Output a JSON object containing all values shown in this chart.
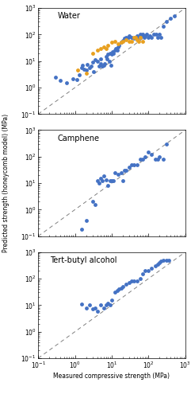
{
  "title_water": "Water",
  "title_camphene": "Camphene",
  "title_tba": "Tert-butyl alcohol",
  "xlabel": "Measured compressive strength (MPa)",
  "ylabel": "Predicted strength (honeycomb model) (MPa)",
  "xlim": [
    0.1,
    1000
  ],
  "ylim": [
    0.1,
    1000
  ],
  "blue_color": "#4472C4",
  "orange_color": "#E8A020",
  "water_blue_x": [
    0.3,
    0.4,
    0.6,
    0.9,
    1.1,
    1.3,
    1.5,
    1.6,
    1.8,
    2.0,
    2.2,
    2.5,
    2.8,
    3.0,
    3.2,
    3.5,
    4.0,
    4.5,
    5.0,
    5.0,
    5.5,
    6.0,
    6.5,
    7.0,
    7.5,
    8.0,
    8.5,
    9.0,
    9.5,
    10.0,
    10.5,
    11.0,
    12.0,
    13.0,
    14.0,
    15.0,
    16.0,
    18.0,
    20.0,
    22.0,
    25.0,
    28.0,
    30.0,
    35.0,
    40.0,
    45.0,
    50.0,
    55.0,
    60.0,
    65.0,
    70.0,
    75.0,
    80.0,
    90.0,
    100.0,
    110.0,
    120.0,
    140.0,
    160.0,
    180.0,
    200.0,
    220.0,
    250.0,
    300.0,
    400.0,
    500.0
  ],
  "water_blue_y": [
    2.5,
    1.8,
    1.5,
    2.2,
    2.0,
    3.0,
    5.5,
    7.0,
    5.0,
    4.5,
    7.5,
    5.5,
    6.5,
    9.0,
    4.0,
    11.0,
    10.0,
    6.5,
    8.0,
    12.0,
    6.5,
    7.0,
    8.0,
    15.0,
    12.0,
    18.0,
    10.0,
    20.0,
    7.0,
    18.0,
    22.0,
    20.0,
    25.0,
    30.0,
    25.0,
    35.0,
    40.0,
    50.0,
    60.0,
    70.0,
    80.0,
    80.0,
    90.0,
    80.0,
    70.0,
    80.0,
    90.0,
    80.0,
    100.0,
    90.0,
    100.0,
    80.0,
    90.0,
    100.0,
    80.0,
    90.0,
    80.0,
    100.0,
    100.0,
    80.0,
    100.0,
    80.0,
    200.0,
    300.0,
    400.0,
    500.0
  ],
  "water_orange_x": [
    1.2,
    2.0,
    3.0,
    4.0,
    5.0,
    6.0,
    7.0,
    8.0,
    10.0,
    12.0,
    15.0,
    18.0,
    20.0,
    25.0,
    30.0,
    35.0,
    40.0,
    45.0,
    50.0,
    55.0,
    60.0,
    70.0
  ],
  "water_orange_y": [
    4.5,
    3.5,
    20.0,
    25.0,
    30.0,
    35.0,
    30.0,
    40.0,
    50.0,
    55.0,
    45.0,
    50.0,
    55.0,
    65.0,
    55.0,
    55.0,
    80.0,
    75.0,
    65.0,
    55.0,
    80.0,
    55.0
  ],
  "camphene_blue_x": [
    1.5,
    2.0,
    3.0,
    3.5,
    4.0,
    4.5,
    5.0,
    5.5,
    6.0,
    7.0,
    8.0,
    9.0,
    10.0,
    11.0,
    12.0,
    15.0,
    18.0,
    20.0,
    22.0,
    25.0,
    30.0,
    35.0,
    40.0,
    50.0,
    60.0,
    70.0,
    80.0,
    100.0,
    120.0,
    150.0,
    180.0,
    200.0,
    250.0,
    300.0
  ],
  "camphene_blue_y": [
    0.18,
    0.4,
    2.0,
    1.5,
    12.0,
    10.0,
    15.0,
    12.0,
    18.0,
    13.0,
    8.0,
    12.0,
    12.0,
    12.0,
    25.0,
    22.0,
    25.0,
    12.0,
    30.0,
    30.0,
    40.0,
    50.0,
    50.0,
    50.0,
    80.0,
    80.0,
    100.0,
    150.0,
    120.0,
    80.0,
    80.0,
    100.0,
    80.0,
    300.0
  ],
  "tba_blue_x": [
    1.5,
    2.0,
    2.5,
    3.0,
    3.5,
    4.0,
    5.0,
    6.0,
    7.0,
    8.0,
    9.0,
    10.0,
    12.0,
    14.0,
    16.0,
    18.0,
    20.0,
    25.0,
    30.0,
    35.0,
    40.0,
    50.0,
    60.0,
    70.0,
    80.0,
    100.0,
    120.0,
    150.0,
    180.0,
    200.0,
    220.0,
    250.0,
    300.0,
    350.0
  ],
  "tba_blue_y": [
    11.0,
    8.0,
    10.0,
    7.0,
    8.0,
    6.0,
    10.0,
    8.0,
    10.0,
    12.0,
    10.0,
    15.0,
    30.0,
    35.0,
    40.0,
    45.0,
    50.0,
    60.0,
    70.0,
    80.0,
    80.0,
    80.0,
    100.0,
    150.0,
    200.0,
    200.0,
    250.0,
    300.0,
    350.0,
    400.0,
    450.0,
    500.0,
    500.0,
    500.0
  ]
}
